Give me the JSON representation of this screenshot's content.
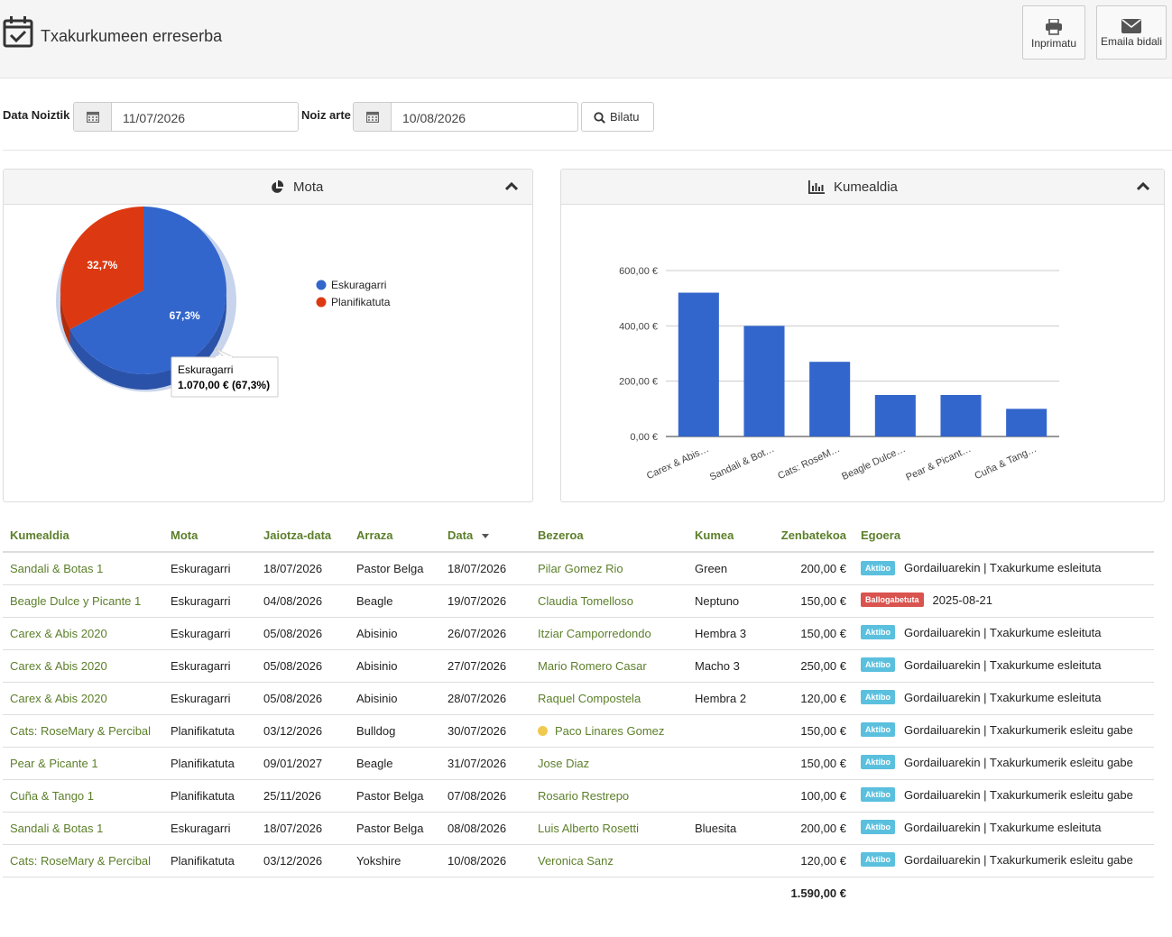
{
  "header": {
    "title": "Txakurkumeen erreserba",
    "print_label": "Inprimatu",
    "email_label": "Emaila bidali"
  },
  "filters": {
    "from_label": "Data Noiztik",
    "from_value": "11/07/2026",
    "to_label": "Noiz arte",
    "to_value": "10/08/2026",
    "search_label": "Bilatu"
  },
  "pie_panel": {
    "title": "Mota"
  },
  "bar_panel": {
    "title": "Kumealdia"
  },
  "chart_data": [
    {
      "type": "pie",
      "title": "Mota",
      "labels": [
        "Eskuragarri",
        "Planifikatuta"
      ],
      "values": [
        67.3,
        32.7
      ],
      "value_labels": [
        "67,3%",
        "32,7%"
      ],
      "colors": [
        "#3366cc",
        "#dc3912"
      ],
      "legend": "right",
      "tooltip": {
        "label": "Eskuragarri",
        "value": "1.070,00 € (67,3%)"
      }
    },
    {
      "type": "bar",
      "title": "Kumealdia",
      "categories": [
        "Carex & Abis…",
        "Sandali & Bot…",
        "Cats: RoseM…",
        "Beagle Dulce…",
        "Pear & Picant…",
        "Cuña & Tang…"
      ],
      "values": [
        520,
        400,
        270,
        150,
        150,
        100
      ],
      "ylim": [
        0,
        600
      ],
      "yticks": [
        0,
        200,
        400,
        600
      ],
      "ytick_labels": [
        "0,00 €",
        "200,00 €",
        "400,00 €",
        "600,00 €"
      ],
      "color": "#3366cc",
      "grid": true
    }
  ],
  "table": {
    "headers": [
      "Kumealdia",
      "Mota",
      "Jaiotza-data",
      "Arraza",
      "Data",
      "Bezeroa",
      "Kumea",
      "Zenbatekoa",
      "Egoera"
    ],
    "rows": [
      {
        "litter": "Sandali & Botas 1",
        "type": "Eskuragarri",
        "birth": "18/07/2026",
        "breed": "Pastor Belga",
        "date": "18/07/2026",
        "client": "Pilar Gomez Rio",
        "puppy": "Green",
        "amount": "200,00 €",
        "badge": "Aktibo",
        "status": "Gordailuarekin | Txakurkume esleituta"
      },
      {
        "litter": "Beagle Dulce y Picante 1",
        "type": "Eskuragarri",
        "birth": "04/08/2026",
        "breed": "Beagle",
        "date": "19/07/2026",
        "client": "Claudia Tomelloso",
        "puppy": "Neptuno",
        "amount": "150,00 €",
        "badge": "Ballogabetuta",
        "status": "2025-08-21"
      },
      {
        "litter": "Carex & Abis 2020",
        "type": "Eskuragarri",
        "birth": "05/08/2026",
        "breed": "Abisinio",
        "date": "26/07/2026",
        "client": "Itziar Camporredondo",
        "puppy": "Hembra 3",
        "amount": "150,00 €",
        "badge": "Aktibo",
        "status": "Gordailuarekin | Txakurkume esleituta"
      },
      {
        "litter": "Carex & Abis 2020",
        "type": "Eskuragarri",
        "birth": "05/08/2026",
        "breed": "Abisinio",
        "date": "27/07/2026",
        "client": "Mario Romero Casar",
        "puppy": "Macho 3",
        "amount": "250,00 €",
        "badge": "Aktibo",
        "status": "Gordailuarekin | Txakurkume esleituta"
      },
      {
        "litter": "Carex & Abis 2020",
        "type": "Eskuragarri",
        "birth": "05/08/2026",
        "breed": "Abisinio",
        "date": "28/07/2026",
        "client": "Raquel Compostela",
        "puppy": "Hembra 2",
        "amount": "120,00 €",
        "badge": "Aktibo",
        "status": "Gordailuarekin | Txakurkume esleituta"
      },
      {
        "litter": "Cats: RoseMary & Percibal",
        "type": "Planifikatuta",
        "birth": "03/12/2026",
        "breed": "Bulldog",
        "date": "30/07/2026",
        "client": "Paco Linares Gomez",
        "puppy": "",
        "amount": "150,00 €",
        "badge": "Aktibo",
        "status": "Gordailuarekin | Txakurkumerik esleitu gabe"
      },
      {
        "litter": "Pear & Picante 1",
        "type": "Planifikatuta",
        "birth": "09/01/2027",
        "breed": "Beagle",
        "date": "31/07/2026",
        "client": "Jose Diaz",
        "puppy": "",
        "amount": "150,00 €",
        "badge": "Aktibo",
        "status": "Gordailuarekin | Txakurkumerik esleitu gabe"
      },
      {
        "litter": "Cuña & Tango 1",
        "type": "Planifikatuta",
        "birth": "25/11/2026",
        "breed": "Pastor Belga",
        "date": "07/08/2026",
        "client": "Rosario Restrepo",
        "puppy": "",
        "amount": "100,00 €",
        "badge": "Aktibo",
        "status": "Gordailuarekin | Txakurkumerik esleitu gabe"
      },
      {
        "litter": "Sandali & Botas 1",
        "type": "Eskuragarri",
        "birth": "18/07/2026",
        "breed": "Pastor Belga",
        "date": "08/08/2026",
        "client": "Luis Alberto Rosetti",
        "puppy": "Bluesita",
        "amount": "200,00 €",
        "badge": "Aktibo",
        "status": "Gordailuarekin | Txakurkume esleituta"
      },
      {
        "litter": "Cats: RoseMary & Percibal",
        "type": "Planifikatuta",
        "birth": "03/12/2026",
        "breed": "Yokshire",
        "date": "10/08/2026",
        "client": "Veronica Sanz",
        "puppy": "",
        "amount": "120,00 €",
        "badge": "Aktibo",
        "status": "Gordailuarekin | Txakurkumerik esleitu gabe"
      }
    ],
    "total": "1.590,00 €"
  },
  "colors": {
    "accent_text": "#5c7f2a",
    "badge_active": "#5bc0de",
    "badge_danger": "#d9534f",
    "status_dot": "#f0c94f"
  }
}
